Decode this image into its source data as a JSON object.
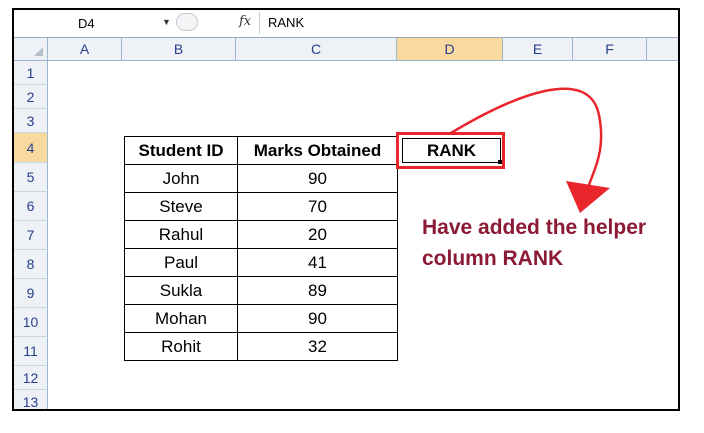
{
  "formula_bar": {
    "name_box": "D4",
    "fx_label": "fx",
    "formula": "RANK"
  },
  "columns": [
    "A",
    "B",
    "C",
    "D",
    "E",
    "F"
  ],
  "rows": [
    "1",
    "2",
    "3",
    "4",
    "5",
    "6",
    "7",
    "8",
    "9",
    "10",
    "11",
    "12",
    "13"
  ],
  "selected_column": "D",
  "selected_row": "4",
  "table": {
    "headers": [
      "Student ID",
      "Marks Obtained"
    ],
    "rows": [
      [
        "John",
        "90"
      ],
      [
        "Steve",
        "70"
      ],
      [
        "Rahul",
        "20"
      ],
      [
        "Paul",
        "41"
      ],
      [
        "Sukla",
        "89"
      ],
      [
        "Mohan",
        "90"
      ],
      [
        "Rohit",
        "32"
      ]
    ]
  },
  "rank_cell": "RANK",
  "annotation": {
    "line1": "Have added the helper",
    "line2": "column RANK",
    "color": "#8b1a34"
  },
  "highlight_color": "#e8262c"
}
